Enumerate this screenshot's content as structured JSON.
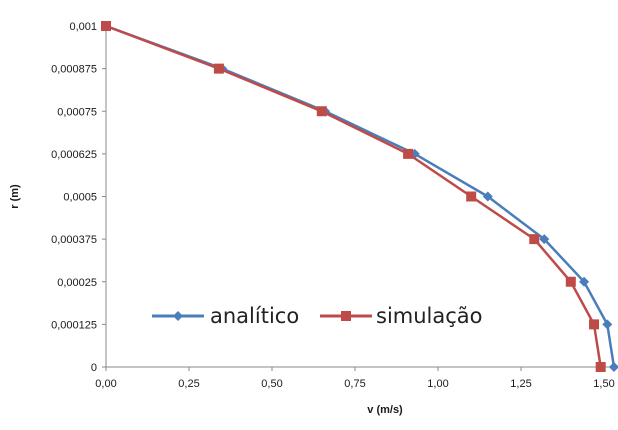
{
  "chart_data": {
    "type": "line",
    "xlabel": "v (m/s)",
    "ylabel": "r (m)",
    "xlim": [
      0,
      1.5
    ],
    "ylim": [
      0,
      0.001
    ],
    "x_ticks": [
      "0,00",
      "0,25",
      "0,50",
      "0,75",
      "1,00",
      "1,25",
      "1,50"
    ],
    "y_ticks": [
      "0",
      "0,000125",
      "0,00025",
      "0,000375",
      "0,0005",
      "0,000625",
      "0,00075",
      "0,000875",
      "0,001"
    ],
    "grid": false,
    "legend_position": "lower-left",
    "series": [
      {
        "name": "analítico",
        "color": "#4a7ebb",
        "marker": "diamond",
        "points": [
          {
            "x": 1.53,
            "y": 0
          },
          {
            "x": 1.51,
            "y": 0.000125
          },
          {
            "x": 1.44,
            "y": 0.00025
          },
          {
            "x": 1.32,
            "y": 0.000375
          },
          {
            "x": 1.15,
            "y": 0.0005
          },
          {
            "x": 0.93,
            "y": 0.000625
          },
          {
            "x": 0.66,
            "y": 0.00075
          },
          {
            "x": 0.35,
            "y": 0.000875
          },
          {
            "x": 0.0,
            "y": 0.001
          }
        ]
      },
      {
        "name": "simulação",
        "color": "#be4b48",
        "marker": "square",
        "points": [
          {
            "x": 1.49,
            "y": 0
          },
          {
            "x": 1.47,
            "y": 0.000125
          },
          {
            "x": 1.4,
            "y": 0.00025
          },
          {
            "x": 1.29,
            "y": 0.000375
          },
          {
            "x": 1.1,
            "y": 0.0005
          },
          {
            "x": 0.91,
            "y": 0.000625
          },
          {
            "x": 0.65,
            "y": 0.00075
          },
          {
            "x": 0.34,
            "y": 0.000875
          },
          {
            "x": 0.0,
            "y": 0.001
          }
        ]
      }
    ]
  }
}
